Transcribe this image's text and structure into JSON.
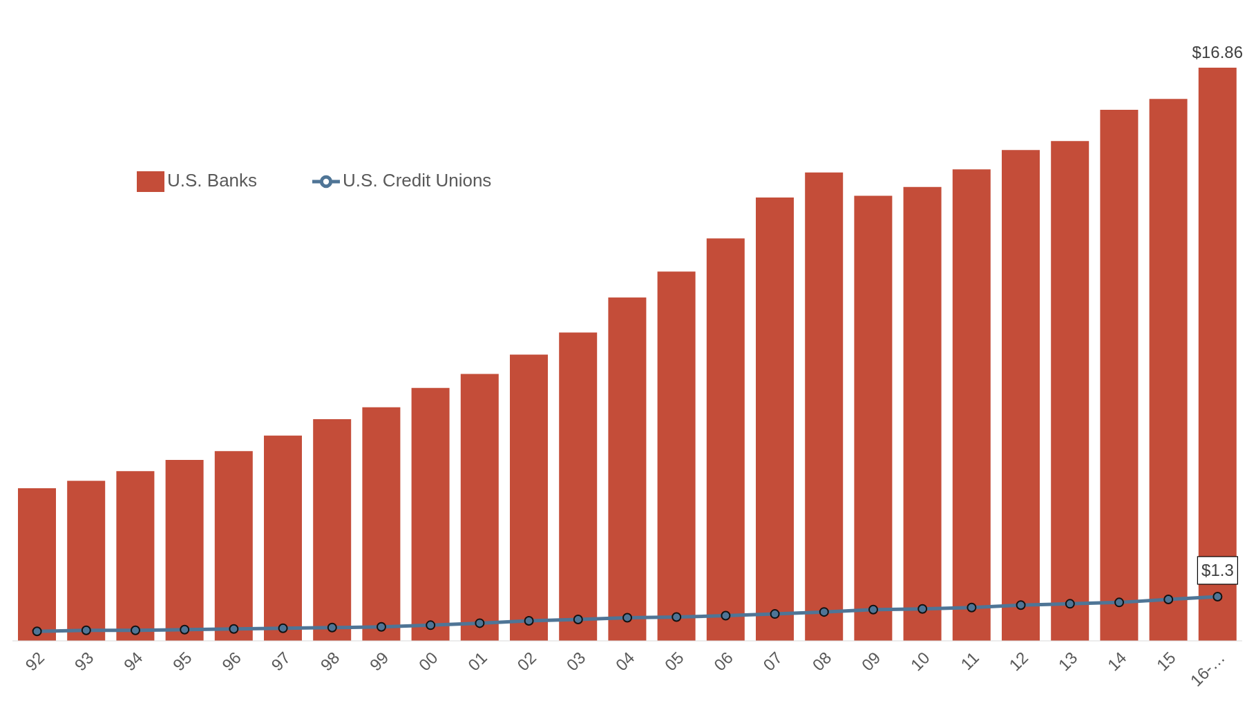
{
  "chart_data": {
    "type": "bar",
    "categories": [
      "92",
      "93",
      "94",
      "95",
      "96",
      "97",
      "98",
      "99",
      "00",
      "01",
      "02",
      "03",
      "04",
      "05",
      "06",
      "07",
      "08",
      "09",
      "10",
      "11",
      "12",
      "13",
      "14",
      "15",
      "16-…"
    ],
    "series": [
      {
        "name": "U.S. Banks",
        "color": "#c44d39",
        "values": [
          4.49,
          4.71,
          4.99,
          5.32,
          5.58,
          6.04,
          6.52,
          6.87,
          7.44,
          7.85,
          8.42,
          9.07,
          10.1,
          10.86,
          11.84,
          13.04,
          13.78,
          13.09,
          13.35,
          13.87,
          14.44,
          14.7,
          15.62,
          15.94,
          16.86
        ],
        "value_labels": [
          null,
          null,
          null,
          null,
          null,
          null,
          null,
          null,
          null,
          null,
          null,
          null,
          null,
          null,
          null,
          null,
          null,
          null,
          null,
          null,
          null,
          null,
          null,
          null,
          "$16.86"
        ]
      },
      {
        "name": "U.S. Credit Unions",
        "type": "line",
        "color": "#4f7596",
        "marker": "circle",
        "values": [
          0.28,
          0.31,
          0.31,
          0.33,
          0.35,
          0.37,
          0.39,
          0.41,
          0.46,
          0.52,
          0.59,
          0.63,
          0.68,
          0.7,
          0.74,
          0.79,
          0.85,
          0.92,
          0.94,
          0.98,
          1.05,
          1.09,
          1.13,
          1.22,
          1.3
        ],
        "value_labels": [
          null,
          null,
          null,
          null,
          null,
          null,
          null,
          null,
          null,
          null,
          null,
          null,
          null,
          null,
          null,
          null,
          null,
          null,
          null,
          null,
          null,
          null,
          null,
          null,
          "$1.3"
        ]
      }
    ],
    "legend": "top left",
    "grid": false
  }
}
